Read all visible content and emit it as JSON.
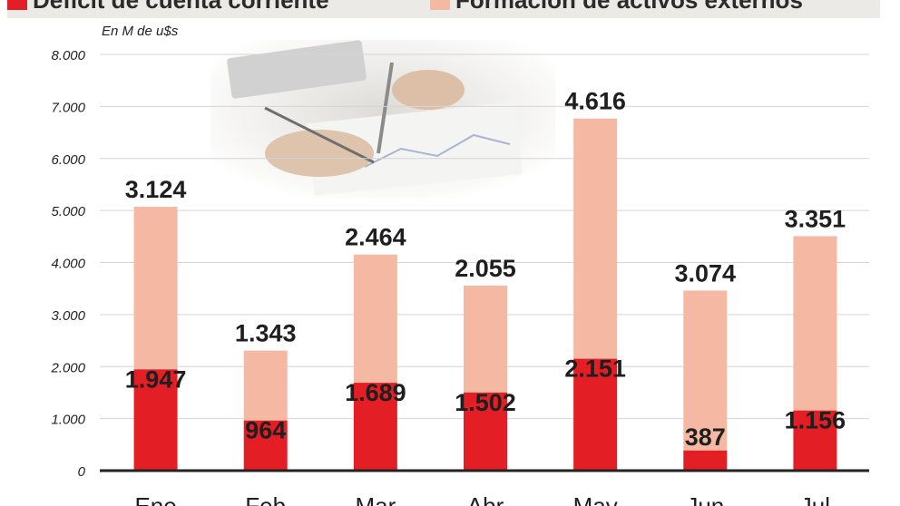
{
  "legend": [
    {
      "label": "Déficit de cuenta corriente",
      "color": "#e31e24"
    },
    {
      "label": "Formación de activos externos",
      "color": "#f5b9a3"
    }
  ],
  "chart_data": {
    "type": "bar",
    "stacked": true,
    "units_label": "En M de u$s",
    "categories": [
      "Ene",
      "Feb",
      "Mar",
      "Abr",
      "May",
      "Jun",
      "Jul"
    ],
    "series": [
      {
        "name": "Déficit de cuenta corriente",
        "color": "#e31e24",
        "values": [
          1947,
          964,
          1689,
          1502,
          2151,
          387,
          1156
        ],
        "labels": [
          "1.947",
          "964",
          "1.689",
          "1.502",
          "2.151",
          "387",
          "1.156"
        ]
      },
      {
        "name": "Formación de activos externos",
        "color": "#f5b9a3",
        "values": [
          3124,
          1343,
          2464,
          2055,
          4616,
          3074,
          3351
        ],
        "labels": [
          "3.124",
          "1.343",
          "2.464",
          "2.055",
          "4.616",
          "3.074",
          "3.351"
        ]
      }
    ],
    "yticks": [
      0,
      1000,
      2000,
      3000,
      4000,
      5000,
      6000,
      7000,
      8000
    ],
    "ytick_labels": [
      "0",
      "1.000",
      "2.000",
      "3.000",
      "4.000",
      "5.000",
      "6.000",
      "7.000",
      "8.000"
    ],
    "ylim": [
      0,
      8000
    ],
    "grid": true
  }
}
